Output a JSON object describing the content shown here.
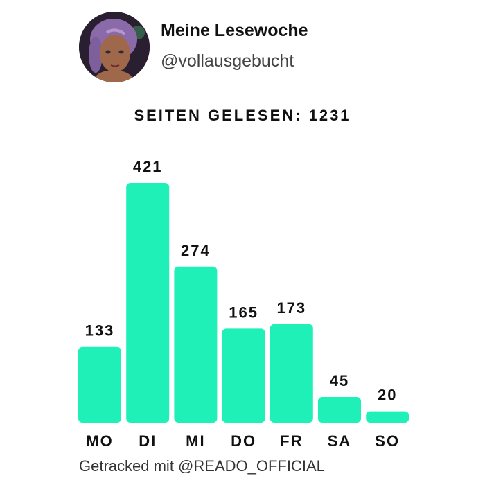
{
  "profile": {
    "name": "Meine Lesewoche",
    "handle": "@vollausgebucht",
    "avatar_icon": "avatar-portrait-icon"
  },
  "summary": {
    "text": "SEITEN GELESEN: 1231"
  },
  "footer": {
    "text": "Getracked mit @READO_OFFICIAL"
  },
  "colors": {
    "bar": "#1ef0b8",
    "text": "#111111"
  },
  "chart_data": {
    "type": "bar",
    "title": "SEITEN GELESEN: 1231",
    "categories": [
      "MO",
      "DI",
      "MI",
      "DO",
      "FR",
      "SA",
      "SO"
    ],
    "values": [
      133,
      421,
      274,
      165,
      173,
      45,
      20
    ],
    "xlabel": "",
    "ylabel": "",
    "ylim": [
      0,
      421
    ],
    "grid": false,
    "legend": "none"
  }
}
